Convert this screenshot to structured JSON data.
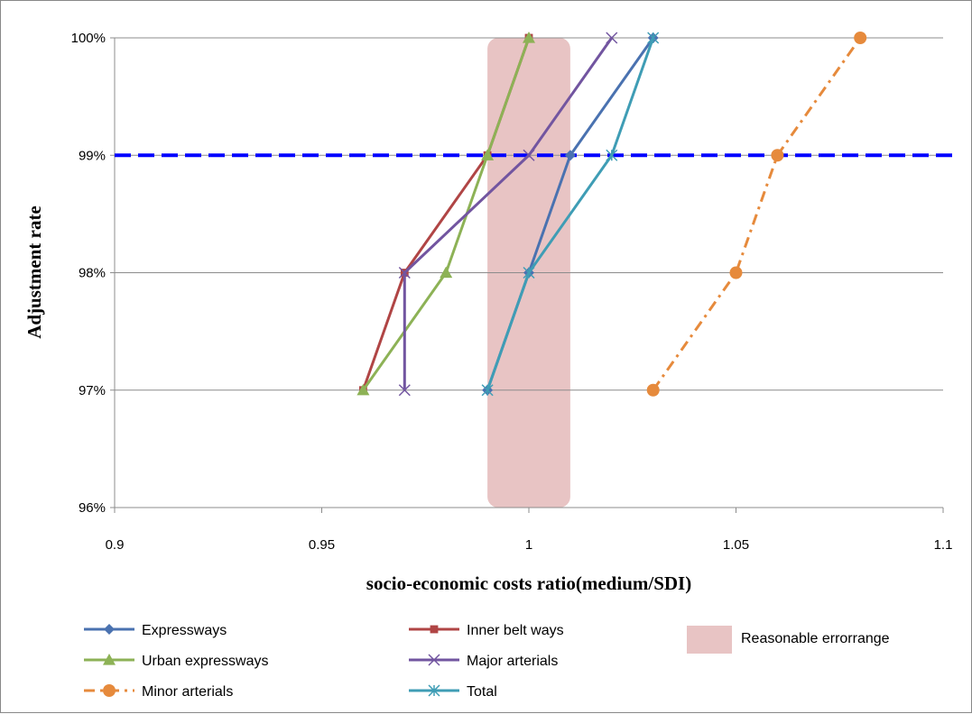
{
  "chart_data": {
    "type": "line",
    "xlabel": "socio-economic costs ratio(medium/SDI)",
    "ylabel": "Adjustment rate",
    "xlim": [
      0.9,
      1.1
    ],
    "ylim": [
      0.96,
      1.0
    ],
    "x_ticks": [
      "0.9",
      "0.95",
      "1",
      "1.05",
      "1.1"
    ],
    "y_ticks": [
      "96%",
      "97%",
      "98%",
      "99%",
      "100%"
    ],
    "grid": "horizontal",
    "legend_position": "bottom",
    "reference_line": {
      "y": 0.99,
      "color": "#0000ff",
      "style": "dashed"
    },
    "error_band": {
      "label": "Reasonable errorrange",
      "x_range": [
        0.99,
        1.01
      ],
      "color": "#e8c4c4"
    },
    "series": [
      {
        "name": "Expressways",
        "color": "#4a72b0",
        "marker": "diamond",
        "dash": "solid",
        "points": [
          [
            0.99,
            0.97
          ],
          [
            1.0,
            0.98
          ],
          [
            1.01,
            0.99
          ],
          [
            1.03,
            1.0
          ]
        ]
      },
      {
        "name": "Inner belt ways",
        "color": "#b04545",
        "marker": "square",
        "dash": "solid",
        "points": [
          [
            0.96,
            0.97
          ],
          [
            0.97,
            0.98
          ],
          [
            0.99,
            0.99
          ],
          [
            1.0,
            1.0
          ]
        ]
      },
      {
        "name": "Urban expressways",
        "color": "#8db256",
        "marker": "triangle",
        "dash": "solid",
        "points": [
          [
            0.96,
            0.97
          ],
          [
            0.98,
            0.98
          ],
          [
            0.99,
            0.99
          ],
          [
            1.0,
            1.0
          ]
        ]
      },
      {
        "name": "Major arterials",
        "color": "#7255a0",
        "marker": "x",
        "dash": "solid",
        "points": [
          [
            0.97,
            0.97
          ],
          [
            0.97,
            0.98
          ],
          [
            1.0,
            0.99
          ],
          [
            1.02,
            1.0
          ]
        ]
      },
      {
        "name": "Minor arterials",
        "color": "#e68a3c",
        "marker": "circle",
        "dash": "dashdot",
        "points": [
          [
            1.03,
            0.97
          ],
          [
            1.05,
            0.98
          ],
          [
            1.06,
            0.99
          ],
          [
            1.08,
            1.0
          ]
        ]
      },
      {
        "name": "Total",
        "color": "#3f9db5",
        "marker": "asterisk",
        "dash": "solid",
        "points": [
          [
            0.99,
            0.97
          ],
          [
            1.0,
            0.98
          ],
          [
            1.02,
            0.99
          ],
          [
            1.03,
            1.0
          ]
        ]
      }
    ]
  }
}
